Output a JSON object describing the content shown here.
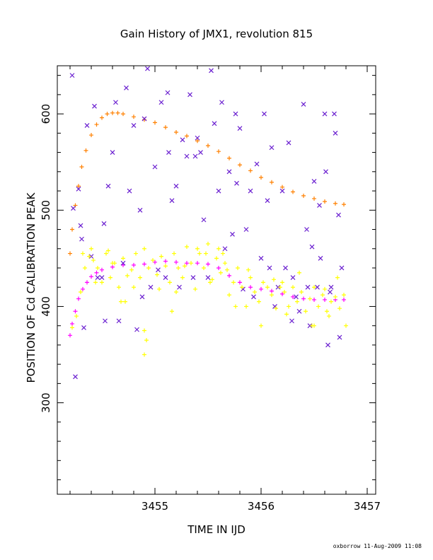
{
  "chart_data": {
    "type": "scatter",
    "title": "Gain History of JMX1, revolution 815",
    "xlabel": "TIME IN IJD",
    "ylabel": "POSITION OF Cd CALIBRATION PEAK",
    "xlim": [
      3454.08,
      3457.08
    ],
    "ylim": [
      205,
      650
    ],
    "xticks": [
      3455,
      3456,
      3457
    ],
    "xtick_labels": [
      "3455",
      "3456",
      "3457"
    ],
    "yticks": [
      300,
      400,
      500,
      600
    ],
    "ytick_labels": [
      "300",
      "400",
      "500",
      "600"
    ],
    "grid": false,
    "legend": "none",
    "credit": "oxborrow 11-Aug-2009 11:08",
    "series": [
      {
        "marker": "+",
        "color": "#ff8000",
        "x": [
          3454.2,
          3454.22,
          3454.25,
          3454.28,
          3454.31,
          3454.35,
          3454.4,
          3454.45,
          3454.5,
          3454.55,
          3454.6,
          3454.65,
          3454.7,
          3454.8,
          3454.9,
          3455.0,
          3455.1,
          3455.2,
          3455.3,
          3455.4,
          3455.5,
          3455.6,
          3455.7,
          3455.8,
          3455.9,
          3456.0,
          3456.1,
          3456.2,
          3456.3,
          3456.4,
          3456.5,
          3456.6,
          3456.7,
          3456.78
        ],
        "y": [
          455,
          480,
          505,
          525,
          545,
          562,
          578,
          589,
          596,
          600,
          601,
          601,
          600,
          597,
          594,
          591,
          586,
          581,
          577,
          572,
          567,
          561,
          554,
          547,
          541,
          534,
          529,
          524,
          519,
          515,
          512,
          509,
          507,
          506
        ]
      },
      {
        "marker": "+",
        "color": "#ff00ff",
        "x": [
          3454.2,
          3454.22,
          3454.25,
          3454.28,
          3454.32,
          3454.36,
          3454.4,
          3454.45,
          3454.5,
          3454.6,
          3454.7,
          3454.8,
          3454.9,
          3455.0,
          3455.1,
          3455.2,
          3455.3,
          3455.4,
          3455.5,
          3455.6,
          3455.7,
          3455.8,
          3455.9,
          3456.0,
          3456.1,
          3456.2,
          3456.3,
          3456.4,
          3456.5,
          3456.6,
          3456.7,
          3456.78
        ],
        "y": [
          370,
          382,
          395,
          408,
          418,
          425,
          431,
          435,
          438,
          441,
          443,
          443,
          444,
          446,
          447,
          446,
          445,
          445,
          444,
          440,
          432,
          425,
          420,
          418,
          416,
          413,
          410,
          408,
          407,
          407,
          407,
          407
        ]
      },
      {
        "marker": "x",
        "color": "#6a1fd0",
        "x": [
          3454.22,
          3454.23,
          3454.25,
          3454.28,
          3454.3,
          3454.33,
          3454.36,
          3454.4,
          3454.43,
          3454.46,
          3454.5,
          3454.53,
          3454.56,
          3454.6,
          3454.63,
          3454.66,
          3454.7,
          3454.73,
          3454.76,
          3454.8,
          3454.83,
          3454.86,
          3454.9,
          3454.93,
          3454.96,
          3455.0,
          3455.03,
          3455.06,
          3455.1,
          3455.13,
          3455.16,
          3455.2,
          3455.23,
          3455.26,
          3455.3,
          3455.33,
          3455.36,
          3455.4,
          3455.43,
          3455.46,
          3455.5,
          3455.53,
          3455.56,
          3455.6,
          3455.63,
          3455.66,
          3455.7,
          3455.73,
          3455.76,
          3455.8,
          3455.83,
          3455.86,
          3455.9,
          3455.93,
          3455.96,
          3456.0,
          3456.03,
          3456.06,
          3456.1,
          3456.13,
          3456.16,
          3456.2,
          3456.23,
          3456.26,
          3456.3,
          3456.33,
          3456.36,
          3456.4,
          3456.43,
          3456.46,
          3456.5,
          3456.53,
          3456.56,
          3456.6,
          3456.63,
          3456.66,
          3456.7,
          3456.73,
          3456.76,
          3456.29,
          3456.44,
          3456.48,
          3456.55,
          3456.61,
          3456.65,
          3456.69,
          3456.74,
          3455.12,
          3455.38,
          3455.77,
          3456.08,
          3454.31,
          3454.52,
          3454.88
        ],
        "y": [
          640,
          502,
          327,
          522,
          484,
          378,
          588,
          452,
          608,
          430,
          430,
          385,
          525,
          560,
          612,
          385,
          445,
          627,
          520,
          588,
          376,
          500,
          595,
          647,
          420,
          545,
          438,
          612,
          430,
          560,
          510,
          525,
          420,
          573,
          556,
          620,
          430,
          575,
          560,
          490,
          430,
          645,
          590,
          520,
          612,
          460,
          540,
          475,
          600,
          585,
          418,
          480,
          520,
          410,
          548,
          450,
          600,
          510,
          565,
          400,
          420,
          520,
          440,
          570,
          430,
          410,
          395,
          610,
          480,
          380,
          530,
          420,
          450,
          600,
          360,
          420,
          580,
          495,
          440,
          385,
          420,
          462,
          505,
          540,
          415,
          600,
          368,
          622,
          556,
          528,
          440,
          470,
          486,
          410
        ]
      },
      {
        "marker": "+",
        "color": "#ffff00",
        "x": [
          3454.22,
          3454.26,
          3454.3,
          3454.34,
          3454.38,
          3454.42,
          3454.46,
          3454.5,
          3454.54,
          3454.58,
          3454.62,
          3454.66,
          3454.7,
          3454.74,
          3454.78,
          3454.82,
          3454.86,
          3454.9,
          3454.94,
          3454.98,
          3455.02,
          3455.06,
          3455.1,
          3455.14,
          3455.18,
          3455.22,
          3455.26,
          3455.3,
          3455.34,
          3455.38,
          3455.42,
          3455.46,
          3455.5,
          3455.54,
          3455.58,
          3455.62,
          3455.66,
          3455.7,
          3455.74,
          3455.78,
          3455.82,
          3455.86,
          3455.9,
          3455.94,
          3455.98,
          3456.02,
          3456.06,
          3456.1,
          3456.14,
          3456.18,
          3456.22,
          3456.26,
          3456.3,
          3456.34,
          3456.38,
          3456.42,
          3456.46,
          3456.5,
          3456.54,
          3456.58,
          3456.62,
          3456.66,
          3456.7,
          3456.74,
          3456.78,
          3454.32,
          3454.44,
          3454.56,
          3454.68,
          3454.8,
          3454.92,
          3455.04,
          3455.16,
          3455.28,
          3455.4,
          3455.52,
          3455.64,
          3455.76,
          3455.88,
          3456.0,
          3456.12,
          3456.24,
          3456.36,
          3456.48,
          3456.6,
          3456.72,
          3454.9,
          3454.9,
          3455.6,
          3456.5,
          3454.4,
          3454.6,
          3454.72,
          3455.2,
          3455.48,
          3455.68,
          3456.2,
          3456.64,
          3456.8
        ],
        "y": [
          378,
          390,
          415,
          440,
          452,
          448,
          440,
          425,
          455,
          430,
          445,
          420,
          450,
          432,
          438,
          455,
          430,
          460,
          440,
          448,
          433,
          452,
          442,
          425,
          455,
          440,
          430,
          462,
          445,
          418,
          455,
          440,
          465,
          428,
          450,
          435,
          445,
          412,
          425,
          440,
          420,
          400,
          430,
          415,
          405,
          425,
          420,
          412,
          398,
          420,
          415,
          400,
          420,
          405,
          415,
          395,
          408,
          420,
          400,
          412,
          395,
          405,
          410,
          398,
          412,
          455,
          425,
          458,
          405,
          420,
          365,
          418,
          395,
          442,
          460,
          425,
          455,
          400,
          438,
          380,
          428,
          392,
          435,
          380,
          418,
          430,
          350,
          375,
          460,
          380,
          460,
          445,
          405,
          415,
          455,
          438,
          425,
          390,
          380
        ]
      }
    ]
  }
}
